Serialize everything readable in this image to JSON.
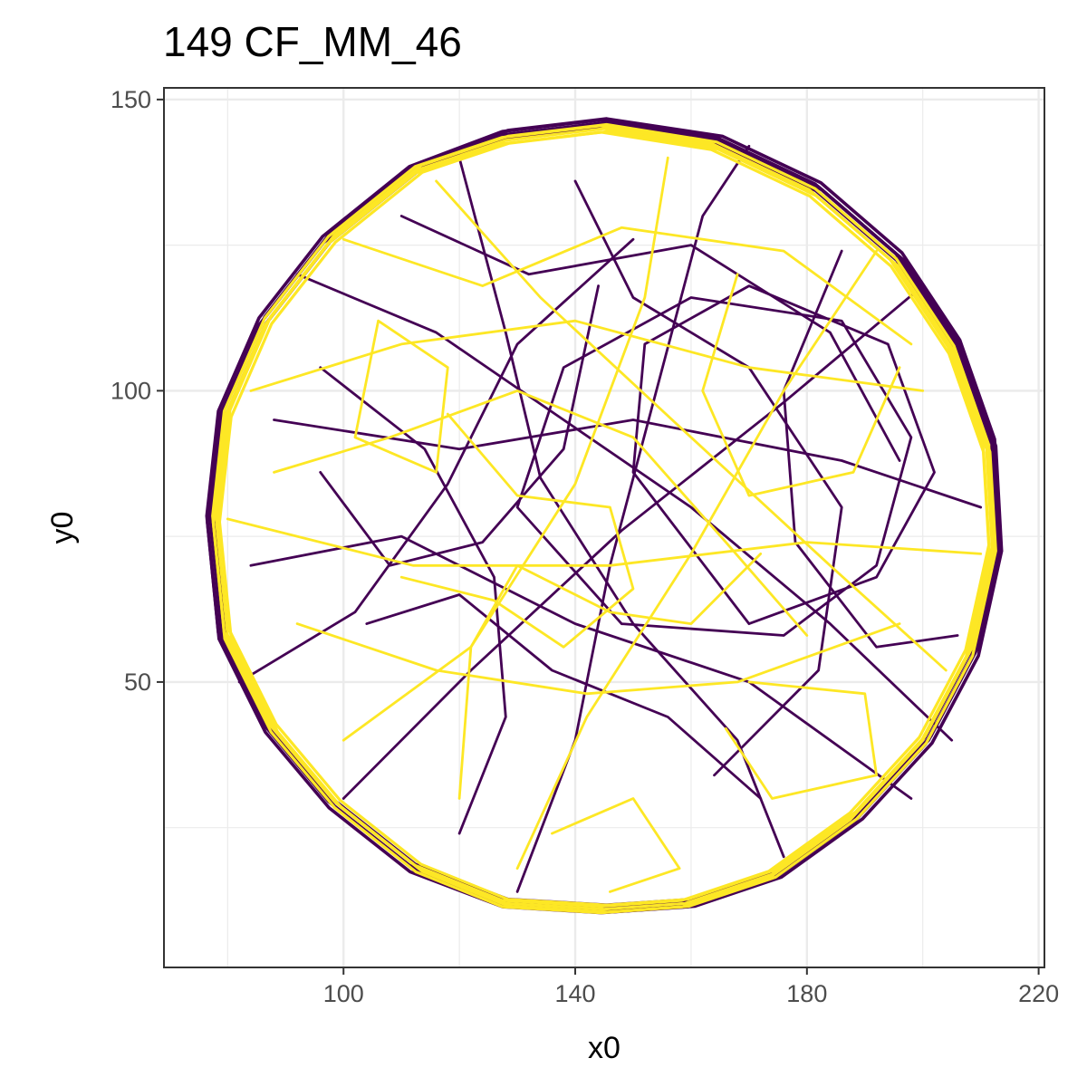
{
  "chart_data": {
    "type": "line",
    "title": "149 CF_MM_46",
    "xlabel": "x0",
    "ylabel": "y0",
    "xlim": [
      69,
      221
    ],
    "ylim": [
      1,
      152
    ],
    "x_ticks": [
      100,
      140,
      180,
      220
    ],
    "x_tick_labels": [
      "100",
      "140",
      "180",
      "220"
    ],
    "y_ticks": [
      50,
      100,
      150
    ],
    "y_tick_labels": [
      "50",
      "100",
      "150"
    ],
    "grid": true,
    "legend": "none",
    "arena": {
      "center_x": 145,
      "center_y": 78,
      "radius": 67
    },
    "series": [
      {
        "color": "#440154",
        "rim_path": [
          [
            145,
            146
          ],
          [
            165,
            143
          ],
          [
            182,
            135
          ],
          [
            196,
            123
          ],
          [
            206,
            108
          ],
          [
            212,
            91
          ],
          [
            213,
            73
          ],
          [
            209,
            55
          ],
          [
            201,
            40
          ],
          [
            189,
            27
          ],
          [
            175,
            17
          ],
          [
            160,
            12
          ],
          [
            145,
            11
          ],
          [
            128,
            12
          ],
          [
            112,
            18
          ],
          [
            98,
            29
          ],
          [
            87,
            42
          ],
          [
            79,
            58
          ],
          [
            77,
            78
          ],
          [
            79,
            96
          ],
          [
            86,
            112
          ],
          [
            97,
            126
          ],
          [
            112,
            138
          ],
          [
            128,
            144
          ],
          [
            145,
            146
          ]
        ],
        "crossing_paths": [
          [
            [
              148,
              60
            ],
            [
              176,
              58
            ],
            [
              192,
              70
            ],
            [
              198,
              92
            ],
            [
              186,
              112
            ],
            [
              160,
              116
            ],
            [
              138,
              104
            ],
            [
              130,
              80
            ],
            [
              148,
              60
            ]
          ],
          [
            [
              170,
              60
            ],
            [
              192,
              68
            ],
            [
              202,
              86
            ],
            [
              194,
              108
            ],
            [
              170,
              118
            ],
            [
              152,
              108
            ],
            [
              150,
              86
            ],
            [
              170,
              60
            ]
          ],
          [
            [
              92,
              120
            ],
            [
              116,
              110
            ],
            [
              138,
              95
            ],
            [
              160,
              80
            ],
            [
              184,
              60
            ],
            [
              205,
              40
            ]
          ],
          [
            [
              84,
              70
            ],
            [
              110,
              75
            ],
            [
              140,
              60
            ],
            [
              170,
              50
            ],
            [
              198,
              30
            ]
          ],
          [
            [
              120,
              140
            ],
            [
              128,
              110
            ],
            [
              134,
              85
            ],
            [
              150,
              60
            ],
            [
              168,
              40
            ],
            [
              176,
              20
            ]
          ],
          [
            [
              100,
              30
            ],
            [
              122,
              52
            ],
            [
              148,
              76
            ],
            [
              176,
              98
            ],
            [
              200,
              118
            ]
          ],
          [
            [
              88,
              95
            ],
            [
              120,
              90
            ],
            [
              150,
              95
            ],
            [
              186,
              88
            ],
            [
              210,
              80
            ]
          ],
          [
            [
              130,
              14
            ],
            [
              140,
              40
            ],
            [
              146,
              70
            ],
            [
              154,
              100
            ],
            [
              162,
              130
            ],
            [
              170,
              142
            ]
          ],
          [
            [
              104,
              60
            ],
            [
              120,
              65
            ],
            [
              136,
              52
            ],
            [
              156,
              44
            ],
            [
              172,
              30
            ]
          ],
          [
            [
              110,
              130
            ],
            [
              132,
              120
            ],
            [
              160,
              125
            ],
            [
              184,
              110
            ],
            [
              196,
              88
            ]
          ],
          [
            [
              82,
              50
            ],
            [
              102,
              62
            ],
            [
              118,
              84
            ],
            [
              130,
              108
            ],
            [
              150,
              126
            ]
          ],
          [
            [
              186,
              124
            ],
            [
              176,
              100
            ],
            [
              178,
              74
            ],
            [
              192,
              56
            ],
            [
              206,
              58
            ]
          ],
          [
            [
              120,
              24
            ],
            [
              128,
              44
            ],
            [
              126,
              68
            ],
            [
              114,
              90
            ],
            [
              96,
              104
            ]
          ],
          [
            [
              140,
              136
            ],
            [
              150,
              116
            ],
            [
              170,
              104
            ],
            [
              186,
              80
            ],
            [
              182,
              52
            ],
            [
              164,
              34
            ]
          ],
          [
            [
              96,
              86
            ],
            [
              108,
              70
            ],
            [
              124,
              74
            ],
            [
              138,
              90
            ],
            [
              144,
              118
            ]
          ]
        ]
      },
      {
        "color": "#fde725",
        "rim_path": [
          [
            145,
            145
          ],
          [
            164,
            142
          ],
          [
            181,
            134
          ],
          [
            195,
            122
          ],
          [
            205,
            107
          ],
          [
            211,
            90
          ],
          [
            212,
            73
          ],
          [
            208,
            55
          ],
          [
            200,
            40
          ],
          [
            188,
            27
          ],
          [
            174,
            17
          ],
          [
            159,
            12
          ],
          [
            145,
            11
          ],
          [
            128,
            12
          ],
          [
            113,
            18
          ],
          [
            99,
            29
          ],
          [
            88,
            42
          ],
          [
            80,
            58
          ],
          [
            78,
            78
          ],
          [
            80,
            96
          ],
          [
            87,
            112
          ],
          [
            98,
            126
          ],
          [
            113,
            138
          ],
          [
            128,
            143
          ],
          [
            145,
            145
          ]
        ],
        "crossing_paths": [
          [
            [
              136,
              24
            ],
            [
              150,
              30
            ],
            [
              158,
              18
            ],
            [
              146,
              14
            ]
          ],
          [
            [
              170,
              50
            ],
            [
              190,
              48
            ],
            [
              192,
              34
            ],
            [
              174,
              30
            ],
            [
              166,
              42
            ]
          ],
          [
            [
              106,
              112
            ],
            [
              118,
              104
            ],
            [
              116,
              86
            ],
            [
              102,
              92
            ],
            [
              106,
              112
            ]
          ],
          [
            [
              84,
              100
            ],
            [
              110,
              108
            ],
            [
              140,
              112
            ],
            [
              170,
              104
            ],
            [
              200,
              100
            ]
          ],
          [
            [
              80,
              78
            ],
            [
              112,
              70
            ],
            [
              146,
              70
            ],
            [
              180,
              74
            ],
            [
              210,
              72
            ]
          ],
          [
            [
              100,
              40
            ],
            [
              122,
              56
            ],
            [
              140,
              84
            ],
            [
              152,
              116
            ],
            [
              156,
              140
            ]
          ],
          [
            [
              116,
              136
            ],
            [
              134,
              116
            ],
            [
              160,
              92
            ],
            [
              184,
              70
            ],
            [
              204,
              52
            ]
          ],
          [
            [
              92,
              60
            ],
            [
              116,
              52
            ],
            [
              142,
              48
            ],
            [
              168,
              50
            ],
            [
              196,
              60
            ]
          ],
          [
            [
              130,
              18
            ],
            [
              142,
              44
            ],
            [
              160,
              72
            ],
            [
              176,
              100
            ],
            [
              192,
              124
            ]
          ],
          [
            [
              100,
              126
            ],
            [
              124,
              118
            ],
            [
              148,
              128
            ],
            [
              176,
              124
            ],
            [
              198,
              108
            ]
          ],
          [
            [
              88,
              86
            ],
            [
              108,
              92
            ],
            [
              130,
              100
            ],
            [
              150,
              92
            ],
            [
              166,
              74
            ],
            [
              180,
              58
            ]
          ],
          [
            [
              120,
              30
            ],
            [
              122,
              56
            ],
            [
              130,
              70
            ],
            [
              146,
              62
            ],
            [
              160,
              60
            ],
            [
              172,
              72
            ]
          ],
          [
            [
              168,
              120
            ],
            [
              162,
              100
            ],
            [
              170,
              82
            ],
            [
              188,
              86
            ],
            [
              196,
              104
            ]
          ],
          [
            [
              110,
              68
            ],
            [
              126,
              64
            ],
            [
              138,
              56
            ],
            [
              150,
              66
            ],
            [
              146,
              80
            ],
            [
              130,
              82
            ],
            [
              118,
              96
            ]
          ]
        ]
      }
    ]
  }
}
